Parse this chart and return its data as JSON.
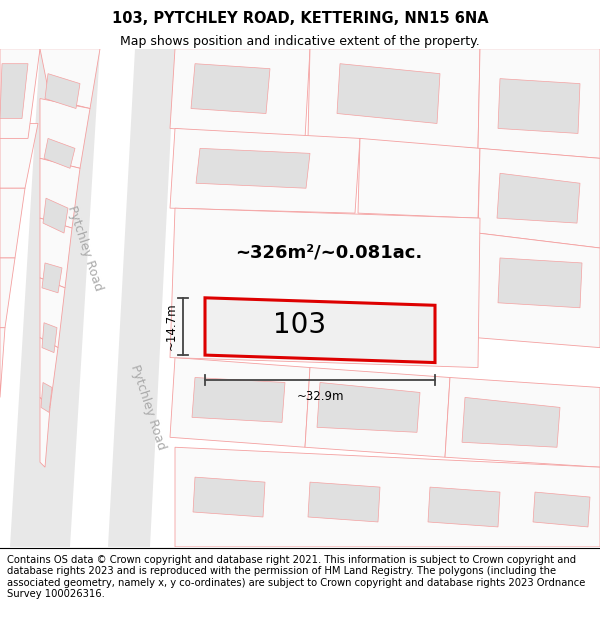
{
  "title": "103, PYTCHLEY ROAD, KETTERING, NN15 6NA",
  "subtitle": "Map shows position and indicative extent of the property.",
  "footer": "Contains OS data © Crown copyright and database right 2021. This information is subject to Crown copyright and database rights 2023 and is reproduced with the permission of HM Land Registry. The polygons (including the associated geometry, namely x, y co-ordinates) are subject to Crown copyright and database rights 2023 Ordnance Survey 100026316.",
  "road_label1": "Pytchley Road",
  "road_label2": "Pytchley Road",
  "area_text": "~326m²/~0.081ac.",
  "label_103": "103",
  "dim_width": "~32.9m",
  "dim_height": "~14.7m",
  "map_bg": "#ffffff",
  "parcel_bg": "#f5f5f5",
  "parcel_edge": "#f4a0a0",
  "building_fill": "#e0e0e0",
  "building_edge": "#c8c8c8",
  "road_fill": "#e8e8e8",
  "highlight_fill": "#f0f0f0",
  "highlight_edge": "#dd0000",
  "dim_color": "#444444",
  "title_fontsize": 10.5,
  "subtitle_fontsize": 9,
  "footer_fontsize": 7.2,
  "area_fontsize": 13,
  "label_fontsize": 20,
  "dim_fontsize": 8.5,
  "road_label_fontsize": 9,
  "road_label_color": "#aaaaaa"
}
